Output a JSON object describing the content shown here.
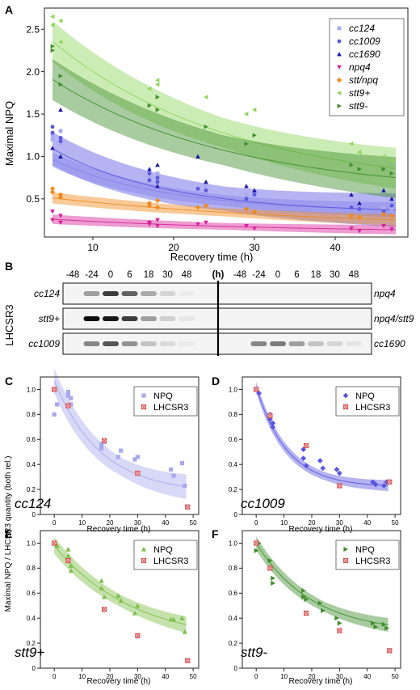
{
  "panels": {
    "A": {
      "letter": "A"
    },
    "B": {
      "letter": "B"
    },
    "C": {
      "letter": "C"
    },
    "D": {
      "letter": "D"
    },
    "E": {
      "letter": "E"
    },
    "F": {
      "letter": "F"
    }
  },
  "colors": {
    "cc124": "#a9a9ee",
    "cc1009": "#5a57e0",
    "cc1690": "#1e1aa8",
    "npq4": "#d6239a",
    "stt_npq": "#ef8a1d",
    "stt9_plus": "#8fd45a",
    "stt9_minus": "#3f8e2c",
    "lhcsr3": "#d94848"
  },
  "chart_data": [
    {
      "panel": "A",
      "type": "scatter",
      "xlabel": "Recovery time (h)",
      "ylabel": "Maximal NPQ",
      "xlim": [
        4,
        49
      ],
      "ylim": [
        0.05,
        2.75
      ],
      "xticks": [
        10,
        20,
        30,
        40
      ],
      "yticks": [
        0.5,
        1.0,
        1.5,
        2.0,
        2.5
      ],
      "ytick_labels": [
        "0.5",
        "1.0",
        "1.5",
        "2.0",
        "2.5"
      ],
      "legend_position": "top-right",
      "series": [
        {
          "name": "cc124",
          "marker": "square",
          "color": "#a9a9ee",
          "x": [
            5,
            5,
            6,
            6,
            17,
            17,
            18,
            18,
            23,
            24,
            29,
            30,
            42,
            43,
            46,
            47
          ],
          "y": [
            1.25,
            1.2,
            1.15,
            1.3,
            0.75,
            0.7,
            0.8,
            0.72,
            0.6,
            0.65,
            0.55,
            0.58,
            0.42,
            0.45,
            0.4,
            0.38
          ]
        },
        {
          "name": "cc1009",
          "marker": "circle",
          "color": "#5a57e0",
          "x": [
            5,
            5,
            6,
            6,
            17,
            17,
            18,
            18,
            23,
            24,
            29,
            30,
            42,
            43,
            46,
            47
          ],
          "y": [
            1.35,
            1.28,
            1.22,
            1.18,
            0.8,
            0.72,
            0.7,
            0.75,
            0.62,
            0.6,
            0.5,
            0.55,
            0.4,
            0.38,
            0.35,
            0.42
          ]
        },
        {
          "name": "cc1690",
          "marker": "triangle-up",
          "color": "#1e1aa8",
          "x": [
            5,
            6,
            6,
            17,
            18,
            18,
            23,
            24,
            29,
            30,
            42,
            43,
            46,
            47
          ],
          "y": [
            1.1,
            1.55,
            1.0,
            0.85,
            0.9,
            0.65,
            1.0,
            0.7,
            0.65,
            0.6,
            0.55,
            0.45,
            0.6,
            0.5
          ]
        },
        {
          "name": "npq4",
          "marker": "triangle-down",
          "color": "#d6239a",
          "x": [
            5,
            5,
            6,
            6,
            17,
            17,
            18,
            18,
            23,
            24,
            29,
            30,
            42,
            43,
            46,
            47
          ],
          "y": [
            0.35,
            0.25,
            0.22,
            0.3,
            0.22,
            0.2,
            0.25,
            0.18,
            0.2,
            0.22,
            0.18,
            0.15,
            0.15,
            0.12,
            0.18,
            0.14
          ]
        },
        {
          "name": "stt/npq",
          "marker": "diamond",
          "color": "#ef8a1d",
          "x": [
            5,
            5,
            6,
            6,
            17,
            17,
            18,
            18,
            23,
            24,
            29,
            30,
            42,
            43,
            46,
            47
          ],
          "y": [
            0.62,
            0.58,
            0.55,
            0.52,
            0.45,
            0.42,
            0.4,
            0.48,
            0.4,
            0.42,
            0.38,
            0.35,
            0.3,
            0.28,
            0.32,
            0.3
          ]
        },
        {
          "name": "stt9+",
          "marker": "triangle-left",
          "color": "#8fd45a",
          "x": [
            5,
            5,
            6,
            6,
            17,
            18,
            18,
            24,
            29,
            30,
            42,
            43,
            46,
            47
          ],
          "y": [
            2.65,
            2.55,
            2.35,
            2.6,
            1.8,
            1.9,
            1.85,
            1.7,
            1.5,
            1.55,
            1.15,
            1.05,
            1.0,
            0.95
          ]
        },
        {
          "name": "stt9-",
          "marker": "triangle-right",
          "color": "#3f8e2c",
          "x": [
            5,
            5,
            6,
            6,
            17,
            18,
            18,
            24,
            29,
            30,
            42,
            43,
            46,
            47
          ],
          "y": [
            2.3,
            2.25,
            1.85,
            1.95,
            1.6,
            1.55,
            1.7,
            1.35,
            1.15,
            1.25,
            0.9,
            0.85,
            0.85,
            0.8
          ]
        }
      ],
      "fits": [
        {
          "series": "cc124",
          "a": 0.88,
          "k": 0.07,
          "c": 0.34,
          "band": 0.08
        },
        {
          "series": "cc1009",
          "a": 1.08,
          "k": 0.07,
          "c": 0.33,
          "band": 0.18
        },
        {
          "series": "npq4",
          "a": 0.19,
          "k": 0.035,
          "c": 0.1,
          "band": 0.05
        },
        {
          "series": "stt/npq",
          "a": 0.42,
          "k": 0.03,
          "c": 0.15,
          "band": 0.06
        },
        {
          "series": "stt9+",
          "a": 2.2,
          "k": 0.045,
          "c": 0.6,
          "band": 0.22
        },
        {
          "series": "stt9-",
          "a": 1.7,
          "k": 0.045,
          "c": 0.55,
          "band": 0.22
        }
      ]
    },
    {
      "panel": "C",
      "type": "scatter",
      "strain": "cc124",
      "xlabel": "Recovery time (h)",
      "ylabel": "",
      "xlim": [
        -5,
        52
      ],
      "ylim": [
        0,
        1.1
      ],
      "xticks": [
        0,
        10,
        20,
        30,
        40,
        50
      ],
      "yticks": [
        0,
        0.2,
        0.4,
        0.6,
        0.8,
        1.0
      ],
      "ytick_labels": [
        "0",
        "0.2",
        "0.4",
        "0.6",
        "0.8",
        "1.0"
      ],
      "legend_position": "top-right",
      "series": [
        {
          "name": "NPQ",
          "marker": "square",
          "color": "#a9a9ee",
          "x": [
            0,
            1,
            5,
            5,
            6,
            6,
            17,
            17,
            18,
            23,
            24,
            29,
            30,
            42,
            43,
            46,
            47
          ],
          "y": [
            0.8,
            0.88,
            0.98,
            0.95,
            0.93,
            0.88,
            0.56,
            0.53,
            0.58,
            0.46,
            0.51,
            0.44,
            0.46,
            0.36,
            0.31,
            0.41,
            0.23
          ]
        },
        {
          "name": "LHCSR3",
          "marker": "crossed-square",
          "color": "#d94848",
          "x": [
            0,
            5,
            18,
            30,
            48
          ],
          "y": [
            1.0,
            0.87,
            0.59,
            0.33,
            0.06
          ]
        }
      ],
      "fit": {
        "a": 0.9,
        "k": 0.06,
        "c": 0.17,
        "band": 0.09
      }
    },
    {
      "panel": "D",
      "type": "scatter",
      "strain": "cc1009",
      "xlabel": "Recovery time (h)",
      "ylabel": "",
      "xlim": [
        -5,
        52
      ],
      "ylim": [
        0,
        1.1
      ],
      "xticks": [
        0,
        10,
        20,
        30,
        40,
        50
      ],
      "yticks": [
        0,
        0.2,
        0.4,
        0.6,
        0.8,
        1.0
      ],
      "ytick_labels": [
        "0",
        "0.2",
        "0.4",
        "0.6",
        "0.8",
        "1.0"
      ],
      "legend_position": "top-right",
      "series": [
        {
          "name": "NPQ",
          "marker": "diamond",
          "color": "#5a57e0",
          "x": [
            0,
            1,
            5,
            5,
            6,
            6,
            17,
            17,
            18,
            23,
            24,
            29,
            30,
            42,
            43,
            46,
            47
          ],
          "y": [
            1.0,
            0.97,
            0.8,
            0.76,
            0.73,
            0.7,
            0.52,
            0.45,
            0.39,
            0.43,
            0.37,
            0.36,
            0.33,
            0.26,
            0.24,
            0.23,
            0.26
          ]
        },
        {
          "name": "LHCSR3",
          "marker": "crossed-square",
          "color": "#d94848",
          "x": [
            0,
            5,
            18,
            30,
            48
          ],
          "y": [
            1.0,
            0.79,
            0.55,
            0.23,
            0.26
          ]
        }
      ],
      "fit": {
        "a": 0.8,
        "k": 0.09,
        "c": 0.22,
        "band": 0.04
      }
    },
    {
      "panel": "E",
      "type": "scatter",
      "strain": "stt9+",
      "xlabel": "Recovery time (h)",
      "ylabel": "",
      "xlim": [
        -5,
        52
      ],
      "ylim": [
        0,
        1.1
      ],
      "xticks": [
        0,
        10,
        20,
        30,
        40,
        50
      ],
      "yticks": [
        0,
        0.2,
        0.4,
        0.6,
        0.8,
        1.0
      ],
      "ytick_labels": [
        "0",
        "0.2",
        "0.4",
        "0.6",
        "0.8",
        "1.0"
      ],
      "legend_position": "top-right",
      "series": [
        {
          "name": "NPQ",
          "marker": "triangle-up",
          "color": "#7fbf4a",
          "x": [
            0,
            1,
            5,
            5,
            6,
            6,
            17,
            17,
            18,
            23,
            24,
            29,
            30,
            42,
            43,
            46,
            47
          ],
          "y": [
            1.0,
            0.98,
            0.95,
            0.9,
            0.82,
            0.78,
            0.7,
            0.64,
            0.57,
            0.58,
            0.54,
            0.44,
            0.5,
            0.39,
            0.39,
            0.4,
            0.29
          ]
        },
        {
          "name": "LHCSR3",
          "marker": "crossed-square",
          "color": "#d94848",
          "x": [
            0,
            5,
            18,
            30,
            48
          ],
          "y": [
            1.0,
            0.86,
            0.47,
            0.26,
            0.06
          ]
        }
      ],
      "fit": {
        "a": 0.78,
        "k": 0.035,
        "c": 0.2,
        "band": 0.06
      }
    },
    {
      "panel": "F",
      "type": "scatter",
      "strain": "stt9-",
      "xlabel": "Recovery time (h)",
      "ylabel": "",
      "xlim": [
        -5,
        52
      ],
      "ylim": [
        0,
        1.1
      ],
      "xticks": [
        0,
        10,
        20,
        30,
        40,
        50
      ],
      "yticks": [
        0,
        0.2,
        0.4,
        0.6,
        0.8,
        1.0
      ],
      "ytick_labels": [
        "0",
        "0.2",
        "0.4",
        "0.6",
        "0.8",
        "1.0"
      ],
      "legend_position": "top-right",
      "series": [
        {
          "name": "NPQ",
          "marker": "triangle-right",
          "color": "#3f8e2c",
          "x": [
            0,
            1,
            5,
            5,
            6,
            6,
            17,
            17,
            18,
            23,
            24,
            29,
            30,
            42,
            43,
            46,
            47
          ],
          "y": [
            0.94,
            1.0,
            0.86,
            0.8,
            0.72,
            0.68,
            0.62,
            0.57,
            0.55,
            0.52,
            0.46,
            0.4,
            0.36,
            0.36,
            0.33,
            0.35,
            0.32
          ]
        },
        {
          "name": "LHCSR3",
          "marker": "crossed-square",
          "color": "#d94848",
          "x": [
            0,
            5,
            18,
            30,
            48
          ],
          "y": [
            1.0,
            0.8,
            0.44,
            0.3,
            0.14
          ]
        }
      ],
      "fit": {
        "a": 0.72,
        "k": 0.05,
        "c": 0.28,
        "band": 0.05
      }
    }
  ],
  "shared_ylabel_CF": "Maximal NPQ / LHCSR3 quantity (both rel.)",
  "blot": {
    "protein_label": "LHCSR3",
    "time_header_left": [
      "-48",
      "-24",
      "0",
      "6",
      "18",
      "30",
      "48"
    ],
    "unit_label": "(h)",
    "time_header_right": [
      "-48",
      "-24",
      "0",
      "6",
      "18",
      "30",
      "48"
    ],
    "rows": [
      {
        "left_label": "cc124",
        "right_label": "npq4",
        "left_bands": [
          0,
          0.35,
          0.75,
          0.6,
          0.3,
          0.12,
          0.03
        ],
        "right_bands": [
          0,
          0,
          0,
          0,
          0,
          0,
          0
        ]
      },
      {
        "left_label": "stt9+",
        "right_label": "npq4/stt9",
        "left_bands": [
          0,
          0.95,
          0.9,
          0.75,
          0.35,
          0.15,
          0.05
        ],
        "right_bands": [
          0,
          0,
          0,
          0,
          0,
          0,
          0
        ]
      },
      {
        "left_label": "cc1009",
        "right_label": "cc1690",
        "left_bands": [
          0,
          0.45,
          0.65,
          0.4,
          0.2,
          0.1,
          0.04
        ],
        "right_bands": [
          0,
          0.45,
          0.5,
          0.35,
          0.2,
          0.12,
          0.06
        ]
      }
    ]
  }
}
